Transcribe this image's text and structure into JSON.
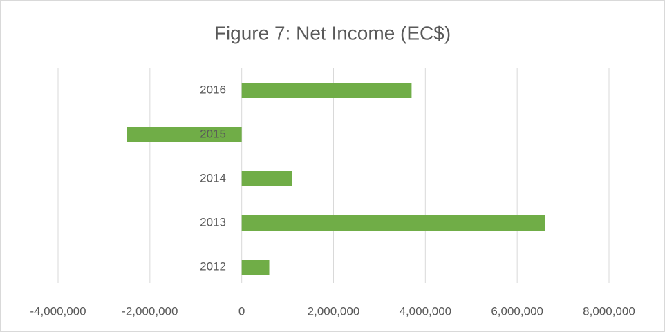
{
  "chart_data": {
    "type": "barh",
    "title": "Figure 7: Net Income (EC$)",
    "categories": [
      "2012",
      "2013",
      "2014",
      "2015",
      "2016"
    ],
    "values": [
      600000,
      6600000,
      1100000,
      -2500000,
      3700000
    ],
    "color": "#70ad47",
    "xlim": [
      -4000000,
      8000000
    ],
    "xticks": [
      {
        "value": -4000000,
        "label": "-4,000,000"
      },
      {
        "value": -2000000,
        "label": "-2,000,000"
      },
      0,
      {
        "value": 2000000,
        "label": "2,000,000"
      },
      {
        "value": 4000000,
        "label": "4,000,000"
      },
      {
        "value": 6000000,
        "label": "6,000,000"
      },
      {
        "value": 8000000,
        "label": "8,000,000"
      }
    ],
    "grid": true
  }
}
